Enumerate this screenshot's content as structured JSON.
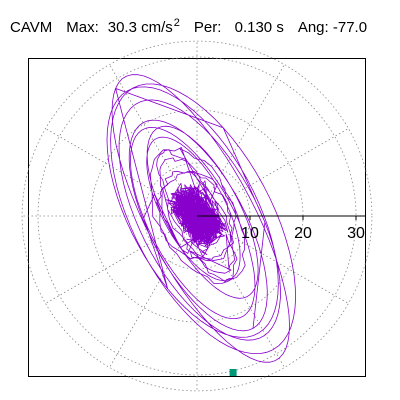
{
  "header": {
    "name": "CAVM",
    "max_label": "Max:",
    "max_value": "30.3",
    "max_unit": "cm/s",
    "max_unit_sup": "2",
    "per_label": "Per:",
    "per_value": "0.130 s",
    "ang_label": "Ang:",
    "ang_value": "-77.0"
  },
  "chart_data": {
    "type": "polar-orbit",
    "radial_ticks": [
      "10",
      "20",
      "30"
    ],
    "radial_tick_values": [
      10,
      20,
      30
    ],
    "r_max": 33,
    "grid_rings": [
      10,
      20,
      30
    ],
    "grid_spoke_angle_step_deg": 30,
    "max_amplitude": 30.3,
    "max_angle_deg": -77.0,
    "orbit": {
      "color": "#8800cc",
      "principal_axis_deg": -62,
      "major_amplitudes": [
        22,
        25,
        28,
        30.3,
        26,
        20,
        18,
        15
      ],
      "minor_amplitudes": [
        9,
        11,
        13,
        10,
        12,
        8,
        7,
        6
      ],
      "noise_amplitude": 5
    },
    "marker": {
      "color": "#009977",
      "magnitude": 30.3,
      "angle_deg": -77.0
    },
    "colors": {
      "grid": "#888888",
      "axis": "#000000",
      "orbit": "#8800cc",
      "marker": "#009977"
    }
  }
}
